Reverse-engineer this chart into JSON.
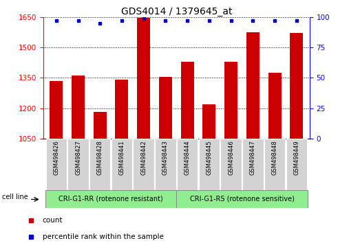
{
  "title": "GDS4014 / 1379645_at",
  "samples": [
    "GSM498426",
    "GSM498427",
    "GSM498428",
    "GSM498441",
    "GSM498442",
    "GSM498443",
    "GSM498444",
    "GSM498445",
    "GSM498446",
    "GSM498447",
    "GSM498448",
    "GSM498449"
  ],
  "counts": [
    1335,
    1360,
    1182,
    1340,
    1645,
    1355,
    1430,
    1218,
    1430,
    1575,
    1375,
    1570
  ],
  "percentile_ranks": [
    97,
    97,
    95,
    97,
    99,
    97,
    97,
    97,
    97,
    97,
    97,
    97
  ],
  "bar_color": "#cc0000",
  "dot_color": "#0000cc",
  "ylim_left": [
    1050,
    1650
  ],
  "ylim_right": [
    0,
    100
  ],
  "yticks_left": [
    1050,
    1200,
    1350,
    1500,
    1650
  ],
  "yticks_right": [
    0,
    25,
    50,
    75,
    100
  ],
  "group1_label": "CRI-G1-RR (rotenone resistant)",
  "group2_label": "CRI-G1-RS (rotenone sensitive)",
  "group1_count": 6,
  "group2_count": 6,
  "cell_line_label": "cell line",
  "legend_count_label": "count",
  "legend_percentile_label": "percentile rank within the sample",
  "group_bg_color": "#90ee90",
  "xticklabel_bg": "#d3d3d3",
  "grid_color": "#000000",
  "title_fontsize": 10,
  "tick_fontsize": 7.5,
  "label_fontsize": 8
}
